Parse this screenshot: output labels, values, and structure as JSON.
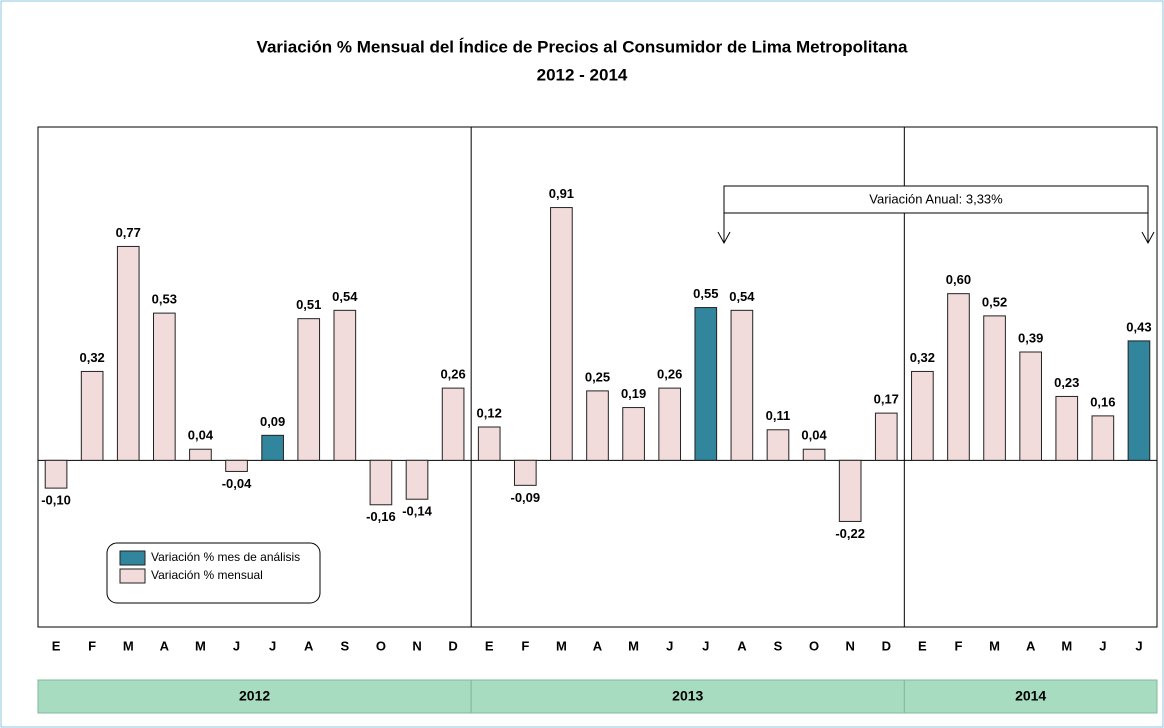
{
  "chart_data": {
    "type": "bar",
    "title": "Variación % Mensual del Índice de Precios al Consumidor de Lima Metropolitana",
    "subtitle": "2012 - 2014",
    "categories": [
      "E",
      "F",
      "M",
      "A",
      "M",
      "J",
      "J",
      "A",
      "S",
      "O",
      "N",
      "D",
      "E",
      "F",
      "M",
      "A",
      "M",
      "J",
      "J",
      "A",
      "S",
      "O",
      "N",
      "D",
      "E",
      "F",
      "M",
      "A",
      "M",
      "J",
      "J"
    ],
    "year_groups": [
      {
        "label": "2012",
        "count": 12
      },
      {
        "label": "2013",
        "count": 12
      },
      {
        "label": "2014",
        "count": 7
      }
    ],
    "series": [
      {
        "name": "Variación % mes de análisis",
        "color": "#31859c",
        "values": [
          null,
          null,
          null,
          null,
          null,
          null,
          0.09,
          null,
          null,
          null,
          null,
          null,
          null,
          null,
          null,
          null,
          null,
          null,
          0.55,
          null,
          null,
          null,
          null,
          null,
          null,
          null,
          null,
          null,
          null,
          null,
          0.43
        ],
        "value_labels": [
          null,
          null,
          null,
          null,
          null,
          null,
          "0,09",
          null,
          null,
          null,
          null,
          null,
          null,
          null,
          null,
          null,
          null,
          null,
          "0,55",
          null,
          null,
          null,
          null,
          null,
          null,
          null,
          null,
          null,
          null,
          null,
          "0,43"
        ]
      },
      {
        "name": "Variación % mensual",
        "color": "#f2dcdb",
        "values": [
          -0.1,
          0.32,
          0.77,
          0.53,
          0.04,
          -0.04,
          null,
          0.51,
          0.54,
          -0.16,
          -0.14,
          0.26,
          0.12,
          -0.09,
          0.91,
          0.25,
          0.19,
          0.26,
          null,
          0.54,
          0.11,
          0.04,
          -0.22,
          0.17,
          0.32,
          0.6,
          0.52,
          0.39,
          0.23,
          0.16,
          null
        ],
        "value_labels": [
          "-0,10",
          "0,32",
          "0,77",
          "0,53",
          "0,04",
          "-0,04",
          null,
          "0,51",
          "0,54",
          "-0,16",
          "-0,14",
          "0,26",
          "0,12",
          "-0,09",
          "0,91",
          "0,25",
          "0,19",
          "0,26",
          null,
          "0,54",
          "0,11",
          "0,04",
          "-0,22",
          "0,17",
          "0,32",
          "0,60",
          "0,52",
          "0,39",
          "0,23",
          "0,16",
          null
        ]
      }
    ],
    "annotation": "Variación Anual: 3,33%",
    "ylim": [
      -0.6,
      1.2
    ]
  }
}
